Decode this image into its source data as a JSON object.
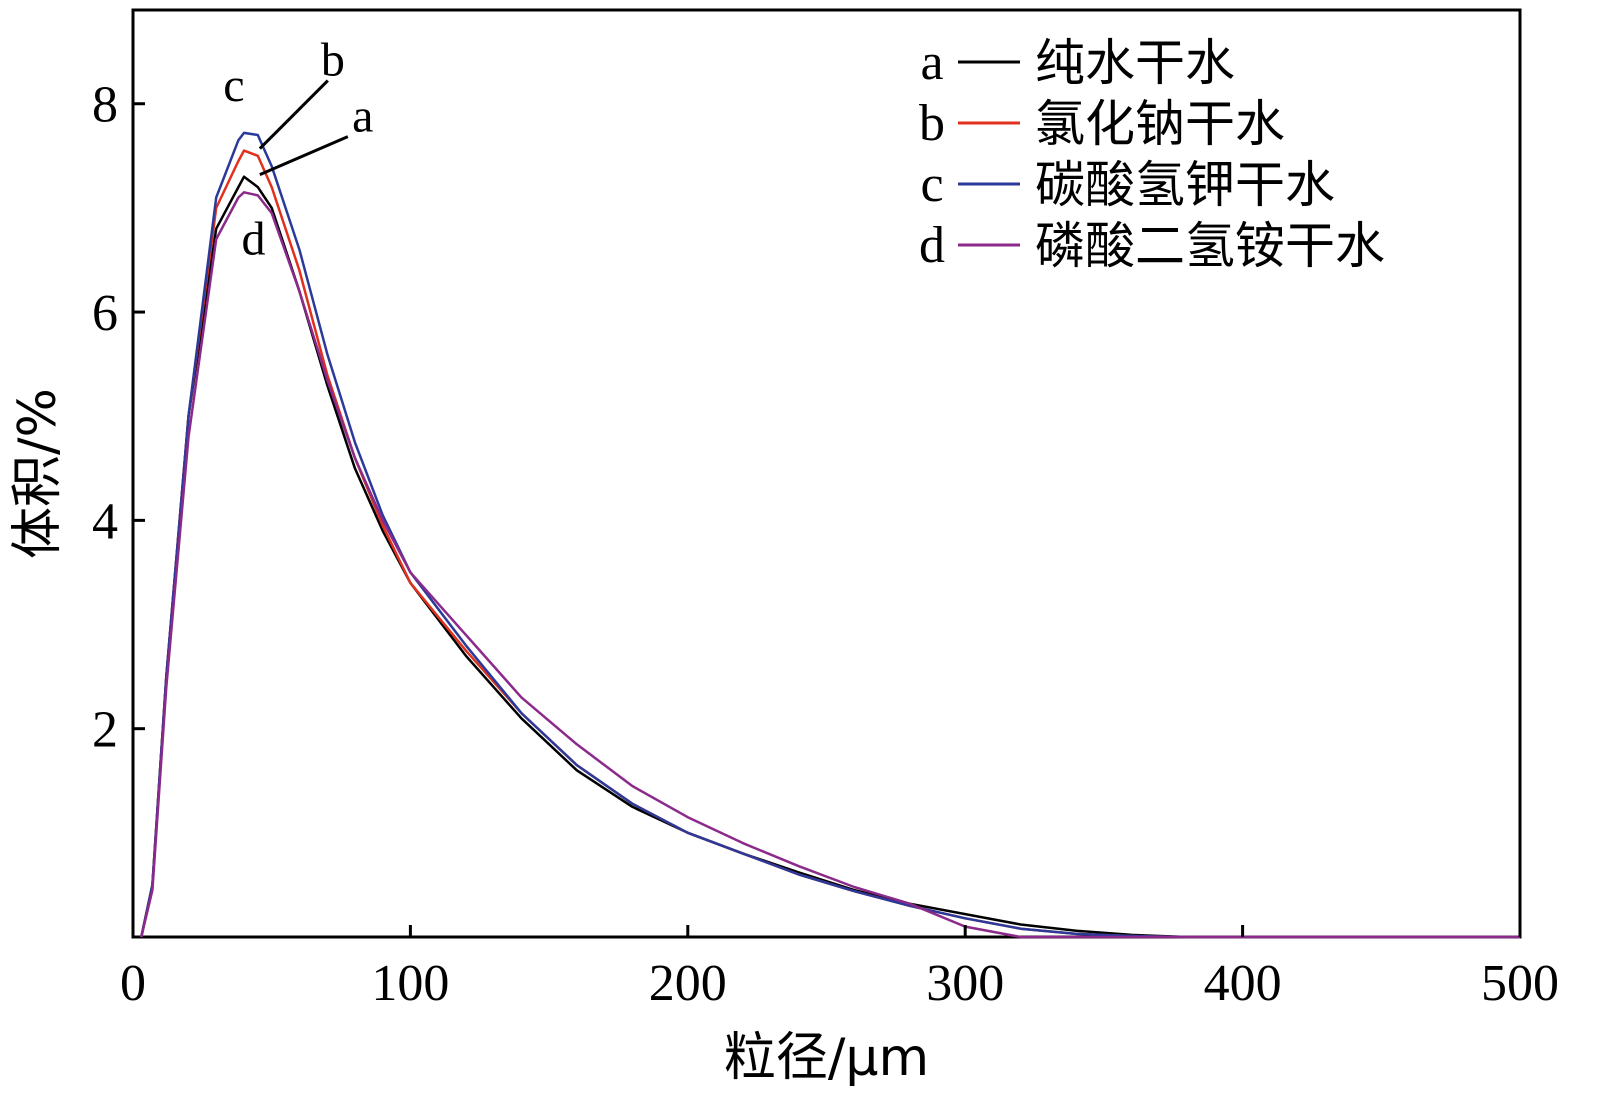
{
  "chart_data": {
    "type": "line",
    "xlabel": "粒径/μm",
    "ylabel": "体积/%",
    "xlim": [
      0,
      500
    ],
    "ylim": [
      0,
      8.9
    ],
    "xticks": [
      0,
      100,
      200,
      300,
      400,
      500
    ],
    "xtick_labels": [
      "0",
      "100",
      "200",
      "300",
      "400",
      "500"
    ],
    "yticks": [
      2,
      4,
      6,
      8
    ],
    "ytick_labels": [
      "2",
      "4",
      "6",
      "8"
    ],
    "grid": false,
    "legend_position": "top-right",
    "series": [
      {
        "key": "a",
        "name": "纯水干水",
        "color": "#000000",
        "x": [
          3,
          7,
          12,
          20,
          30,
          38,
          40,
          45,
          50,
          60,
          70,
          80,
          90,
          100,
          120,
          140,
          160,
          180,
          200,
          220,
          240,
          260,
          280,
          300,
          320,
          340,
          360,
          380,
          400,
          450,
          500
        ],
        "y": [
          0,
          0.5,
          2.5,
          5.0,
          6.8,
          7.2,
          7.3,
          7.2,
          7.0,
          6.2,
          5.3,
          4.5,
          3.9,
          3.4,
          2.7,
          2.1,
          1.6,
          1.25,
          1.0,
          0.8,
          0.62,
          0.45,
          0.32,
          0.22,
          0.12,
          0.06,
          0.02,
          0,
          0,
          0,
          0
        ]
      },
      {
        "key": "b",
        "name": "氯化钠干水",
        "color": "#e0301e",
        "x": [
          3,
          7,
          12,
          20,
          30,
          38,
          40,
          45,
          50,
          60,
          70,
          80,
          90,
          100,
          120,
          140,
          160,
          180,
          200,
          220,
          240,
          260,
          280,
          300,
          320,
          340,
          360,
          380,
          400,
          450,
          500
        ],
        "y": [
          0,
          0.5,
          2.5,
          5.0,
          7.0,
          7.45,
          7.55,
          7.5,
          7.2,
          6.4,
          5.4,
          4.6,
          3.95,
          3.4,
          2.75,
          2.15,
          1.65,
          1.28,
          1.0,
          0.8,
          0.6,
          0.44,
          0.3,
          0.18,
          0.08,
          0.03,
          0.01,
          0,
          0,
          0,
          0
        ]
      },
      {
        "key": "c",
        "name": "碳酸氢钾干水",
        "color": "#2b3a9a",
        "x": [
          3,
          7,
          12,
          20,
          30,
          38,
          40,
          45,
          50,
          60,
          70,
          80,
          90,
          100,
          120,
          140,
          160,
          180,
          200,
          220,
          240,
          260,
          280,
          300,
          320,
          340,
          360,
          380,
          400,
          450,
          500
        ],
        "y": [
          0,
          0.5,
          2.5,
          5.0,
          7.1,
          7.65,
          7.72,
          7.7,
          7.4,
          6.6,
          5.6,
          4.75,
          4.05,
          3.5,
          2.8,
          2.15,
          1.65,
          1.28,
          1.0,
          0.8,
          0.6,
          0.44,
          0.3,
          0.18,
          0.08,
          0.03,
          0.01,
          0,
          0,
          0,
          0
        ]
      },
      {
        "key": "d",
        "name": "磷酸二氢铵干水",
        "color": "#8b2a8b",
        "x": [
          3,
          7,
          12,
          20,
          30,
          38,
          40,
          45,
          50,
          60,
          70,
          80,
          90,
          100,
          120,
          140,
          160,
          180,
          200,
          220,
          240,
          260,
          280,
          300,
          320,
          340,
          360,
          380,
          400,
          450,
          500
        ],
        "y": [
          0,
          0.45,
          2.4,
          4.8,
          6.7,
          7.1,
          7.15,
          7.12,
          6.95,
          6.2,
          5.35,
          4.6,
          4.0,
          3.5,
          2.9,
          2.3,
          1.85,
          1.45,
          1.15,
          0.9,
          0.68,
          0.48,
          0.32,
          0.1,
          0,
          0,
          0,
          0,
          0,
          0,
          0
        ]
      }
    ],
    "annotations": [
      {
        "text": "c",
        "target_series": "c",
        "x": 40,
        "y": 7.72
      },
      {
        "text": "b",
        "target_series": "b",
        "x": 45,
        "y": 7.55
      },
      {
        "text": "a",
        "target_series": "a",
        "x": 45,
        "y": 7.3
      },
      {
        "text": "d",
        "target_series": "d",
        "x": 42,
        "y": 7.15
      }
    ]
  }
}
